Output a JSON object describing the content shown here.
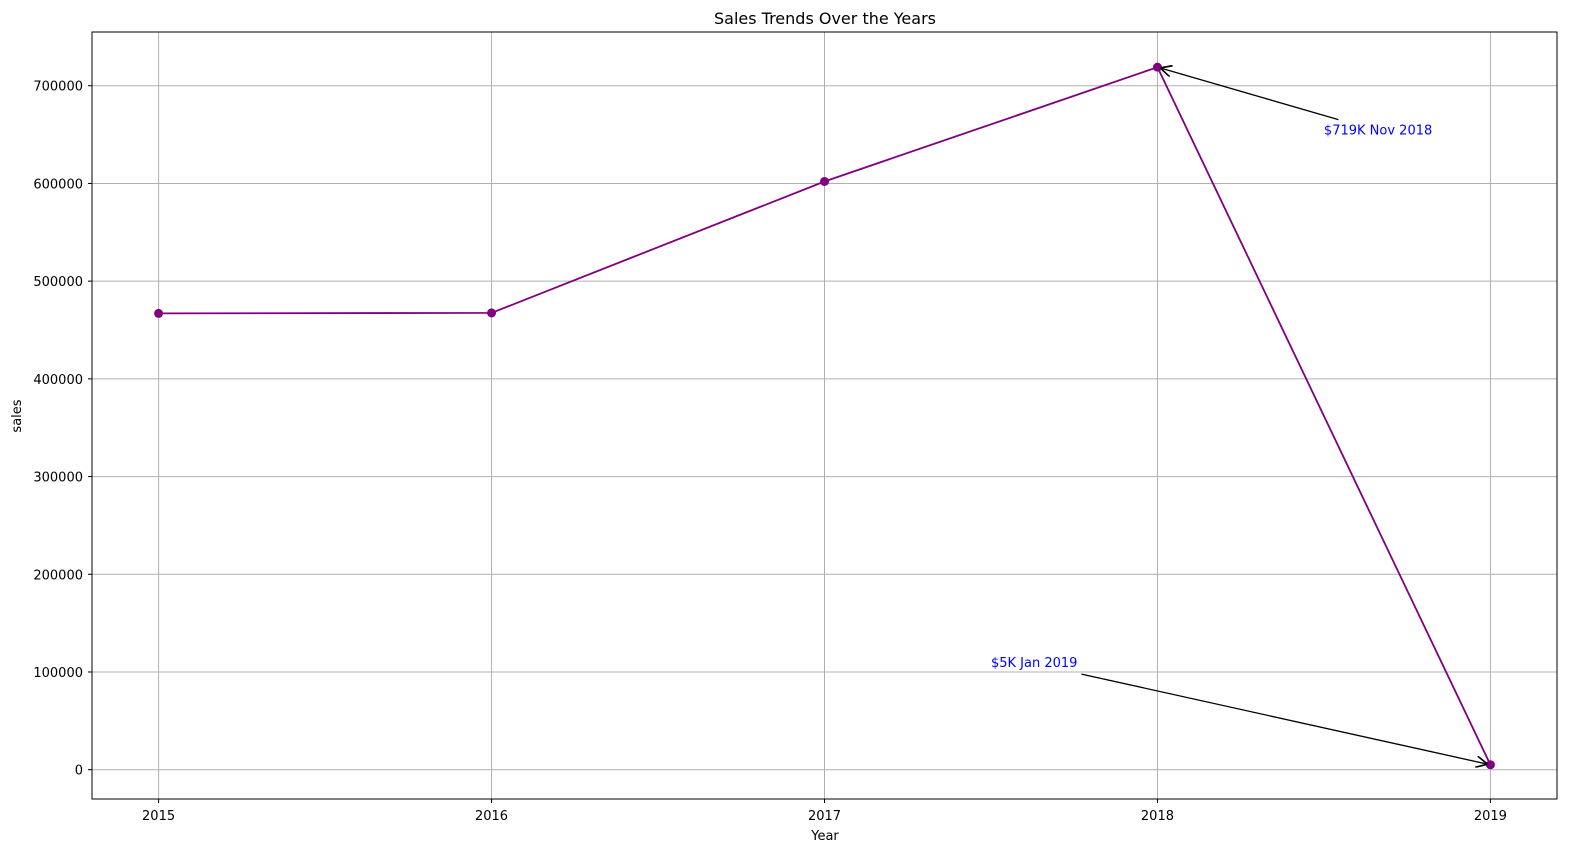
{
  "chart_data": {
    "type": "line",
    "title": "Sales Trends Over the Years",
    "xlabel": "Year",
    "ylabel": "sales",
    "x": [
      2015,
      2016,
      2017,
      2018,
      2019
    ],
    "series": [
      {
        "values": [
          467000,
          467500,
          602000,
          719000,
          5000
        ],
        "color": "#800080",
        "marker": "circle"
      }
    ],
    "xlim": [
      2014.8,
      2019.2
    ],
    "ylim": [
      -30000,
      755000
    ],
    "xticks": [
      2015,
      2016,
      2017,
      2018,
      2019
    ],
    "xtick_labels": [
      "2015",
      "2016",
      "2017",
      "2018",
      "2019"
    ],
    "yticks": [
      0,
      100000,
      200000,
      300000,
      400000,
      500000,
      600000,
      700000
    ],
    "ytick_labels": [
      "0",
      "100000",
      "200000",
      "300000",
      "400000",
      "500000",
      "600000",
      "700000"
    ],
    "grid": true,
    "annotations": [
      {
        "text": "$719K Nov 2018",
        "point": [
          2018,
          719000
        ],
        "text_at": [
          2018.5,
          650000
        ],
        "color": "#0000ff",
        "arrow_color": "#000000"
      },
      {
        "text": "$5K Jan 2019",
        "point": [
          2019,
          5000
        ],
        "text_at": [
          2017.5,
          105000
        ],
        "color": "#0000ff",
        "arrow_color": "#000000"
      }
    ]
  }
}
